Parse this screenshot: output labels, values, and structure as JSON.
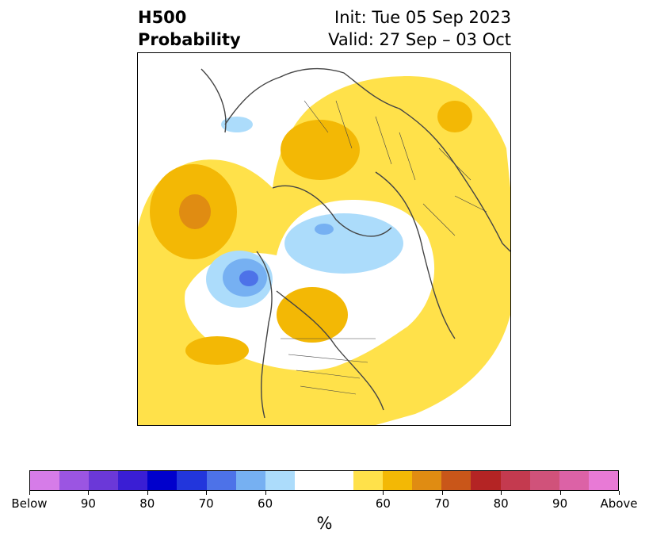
{
  "header": {
    "left_line1": "H500",
    "left_line2": "Probability",
    "right_line1": "Init: Tue 05 Sep 2023",
    "right_line2": "Valid: 27 Sep – 03 Oct"
  },
  "colorbar": {
    "colors": [
      "#d67ce8",
      "#9b55e2",
      "#6b38d8",
      "#3a1ed4",
      "#0000cc",
      "#2236dc",
      "#4d72e8",
      "#76b0f2",
      "#acdcfb",
      "#ffffff",
      "#ffffff",
      "#ffe14a",
      "#f3b805",
      "#e08c12",
      "#c95619",
      "#b42424",
      "#c43a4f",
      "#d0527a",
      "#dc62a6",
      "#e87ad6"
    ],
    "ticks": [
      "Below",
      "90",
      "80",
      "70",
      "60",
      "60",
      "70",
      "80",
      "90",
      "Above"
    ],
    "unit": "%"
  },
  "map": {
    "projection": "polar stereographic (north pole)",
    "land_outline_color": "#444444",
    "above_colors": [
      "#ffe14a",
      "#f3b805",
      "#e08c12"
    ],
    "below_colors": [
      "#acdcfb",
      "#76b0f2",
      "#4d72e8",
      "#2236dc"
    ]
  }
}
